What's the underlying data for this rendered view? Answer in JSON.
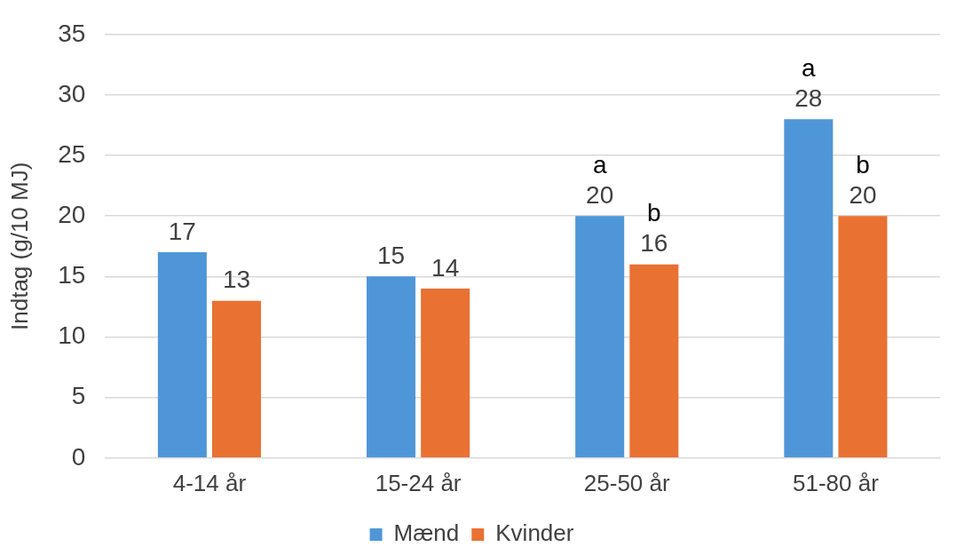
{
  "chart_data": {
    "type": "bar",
    "ylabel": "Indtag (g/10 MJ)",
    "categories": [
      "4-14 år",
      "15-24 år",
      "25-50 år",
      "51-80 år"
    ],
    "series": [
      {
        "name": "Mænd",
        "color": "#4f96d8",
        "values": [
          17,
          15,
          20,
          28
        ]
      },
      {
        "name": "Kvinder",
        "color": "#e97132",
        "values": [
          13,
          14,
          16,
          20
        ]
      }
    ],
    "ylim": [
      0,
      35
    ],
    "yticks": [
      0,
      5,
      10,
      15,
      20,
      25,
      30,
      35
    ],
    "grid": "y",
    "legend": "bottom",
    "data_labels": true,
    "annotations": [
      {
        "text": "a",
        "x": "25-50 år",
        "y": 20
      },
      {
        "text": "b",
        "x": "25-50 år",
        "y": 16
      },
      {
        "text": "a",
        "x": "51-80 år",
        "y": 28
      },
      {
        "text": "b",
        "x": "51-80 år",
        "y": 20
      }
    ]
  }
}
